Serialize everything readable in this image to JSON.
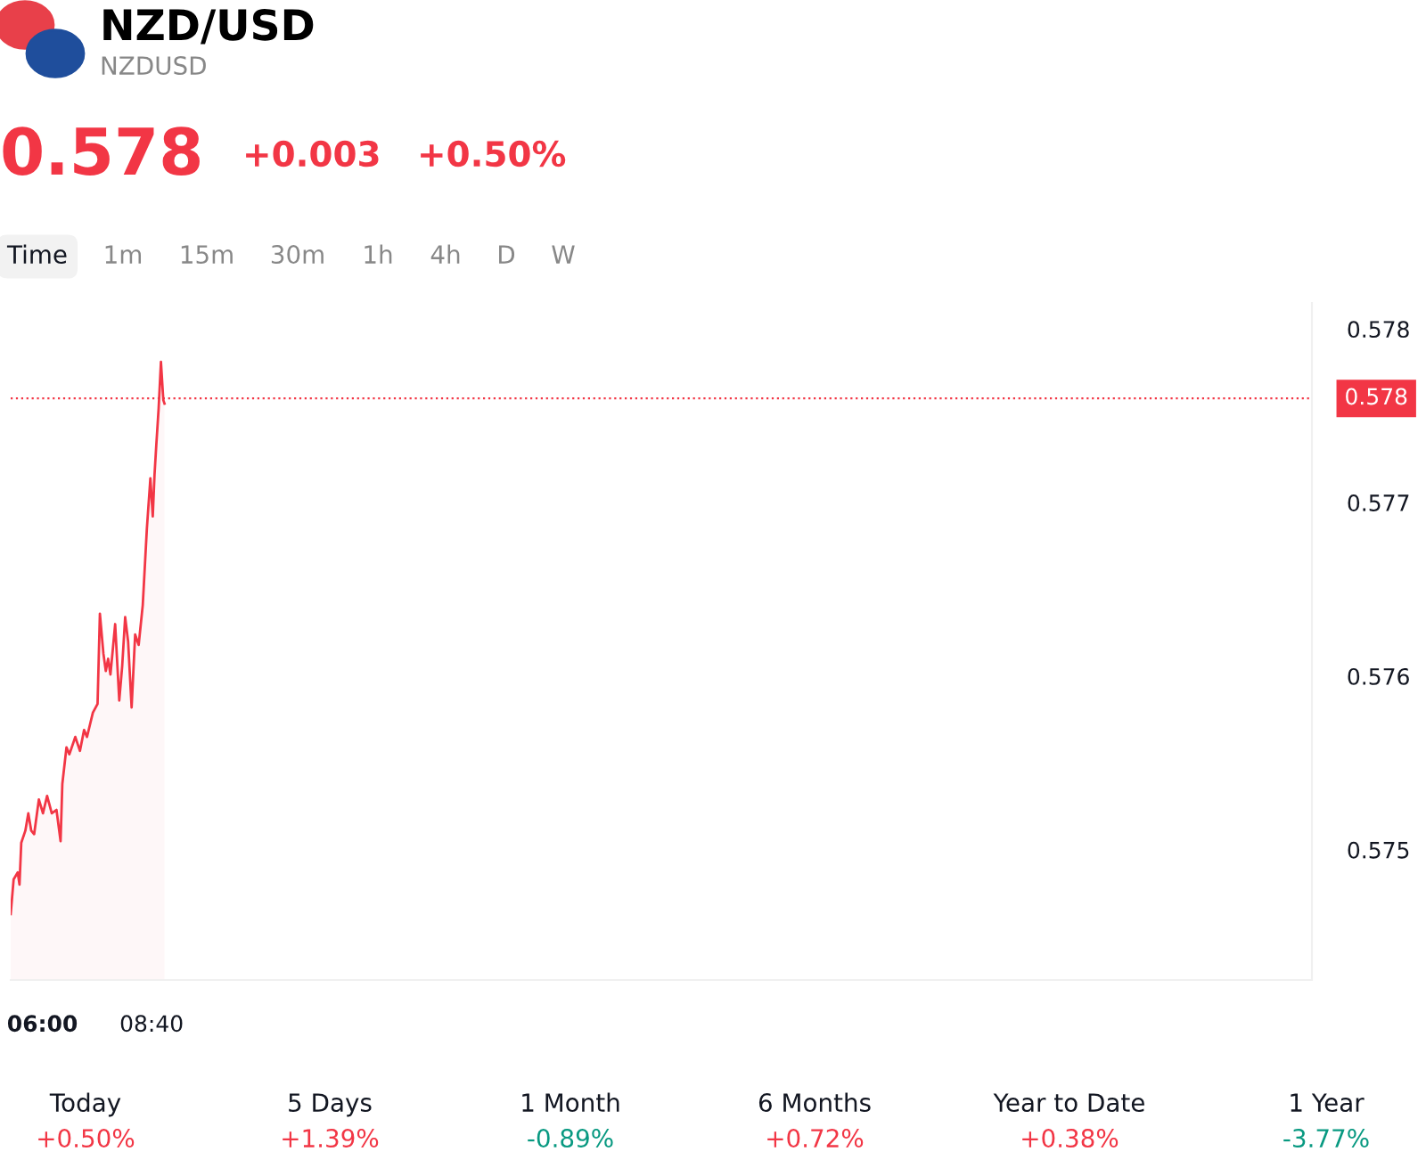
{
  "chart_data": {
    "type": "area",
    "title": "NZD/USD",
    "subtitle": "NZDUSD",
    "annotations": [
      "0.578",
      "+0.003",
      "+0.50%",
      "Time",
      "1m",
      "15m",
      "30m",
      "1h",
      "4h",
      "D",
      "W",
      "Today",
      "+0.50%",
      "5 Days",
      "+1.39%",
      "1 Month",
      "-0.89%",
      "6 Months",
      "+0.72%",
      "Year to Date",
      "+0.38%",
      "1 Year",
      "-3.77%"
    ],
    "x": [
      5.226,
      5.298,
      5.398,
      5.441,
      5.484,
      5.584,
      5.656,
      5.728,
      5.799,
      5.914,
      6.014,
      6.115,
      6.229,
      6.344,
      6.444,
      6.487,
      6.588,
      6.659,
      6.803,
      6.917,
      7.018,
      7.089,
      7.161,
      7.233,
      7.347,
      7.404,
      7.49,
      7.548,
      7.605,
      7.662,
      7.777,
      7.877,
      7.949,
      8.021,
      8.093,
      8.179,
      8.265,
      8.351,
      8.451,
      8.551,
      8.637,
      8.695,
      8.738,
      8.781,
      8.838,
      8.895,
      8.953,
      8.982
    ],
    "series": [
      {
        "color": "#f23645",
        "values": [
          0.57463,
          0.57483,
          0.57487,
          0.5748,
          0.57504,
          0.57511,
          0.57521,
          0.57511,
          0.57509,
          0.57529,
          0.57521,
          0.57531,
          0.57521,
          0.57523,
          0.57505,
          0.57538,
          0.57559,
          0.57555,
          0.57565,
          0.57557,
          0.57569,
          0.57565,
          0.57572,
          0.57579,
          0.57584,
          0.57636,
          0.57613,
          0.57603,
          0.5761,
          0.57601,
          0.5763,
          0.57586,
          0.57606,
          0.57634,
          0.5762,
          0.57582,
          0.57624,
          0.57618,
          0.57641,
          0.57685,
          0.57714,
          0.57692,
          0.57716,
          0.57733,
          0.57754,
          0.57781,
          0.57759,
          0.57757
        ]
      }
    ],
    "xlim": [
      5.226,
      37.0
    ],
    "ylim": [
      0.57425,
      0.57815
    ],
    "xticks": [
      {
        "value": 6,
        "label": "06:00"
      },
      {
        "value": 8.667,
        "label": "08:40"
      }
    ],
    "yticks": [
      0.575,
      0.576,
      0.577,
      0.578
    ],
    "ref_lines": [
      {
        "axis": "y",
        "value": 0.5776,
        "label": "0.578",
        "color": "#f23645",
        "line_style": "dotted"
      }
    ],
    "grid": false,
    "legend": false,
    "marker": "none",
    "line_style": "solid"
  }
}
